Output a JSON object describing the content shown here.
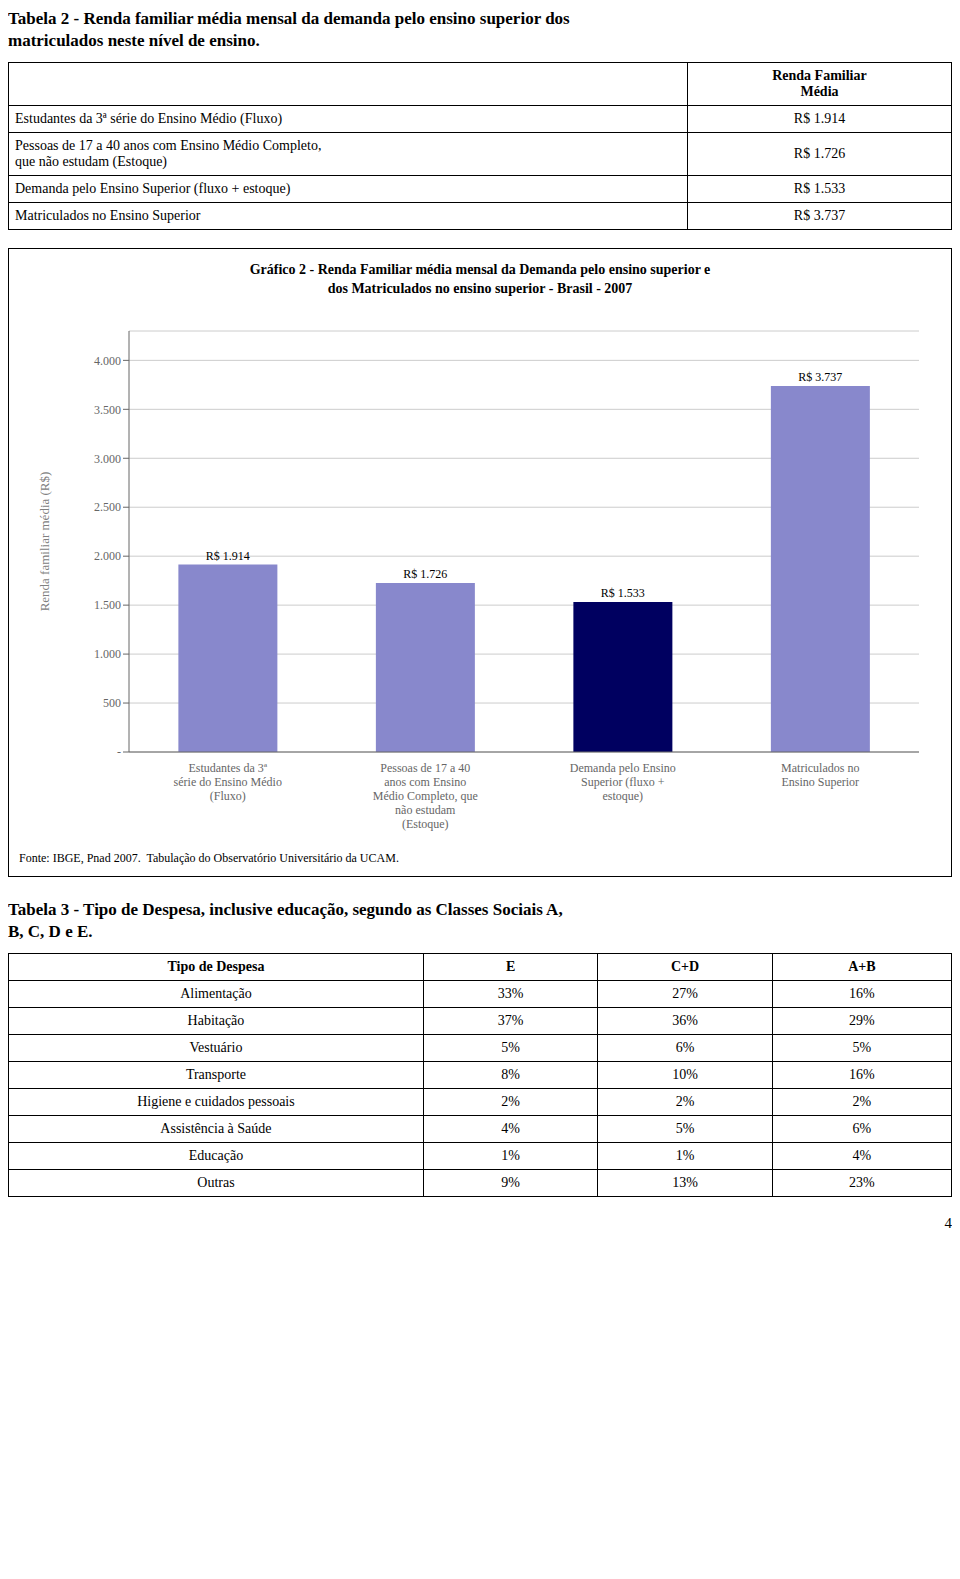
{
  "chart_data": {
    "type": "bar",
    "title": "Gráfico 2 - Renda Familiar média mensal da Demanda pelo ensino superior e\ndos Matriculados no ensino superior - Brasil - 2007",
    "categories": [
      "Estudantes da 3ª\nsérie do Ensino Médio\n(Fluxo)",
      "Pessoas de 17 a 40\nanos com Ensino\nMédio Completo, que\nnão estudam\n(Estoque)",
      "Demanda pelo Ensino\nSuperior (fluxo +\nestoque)",
      "Matriculados no\nEnsino Superior"
    ],
    "values": [
      1914,
      1726,
      1533,
      3737
    ],
    "value_labels": [
      "R$ 1.914",
      "R$ 1.726",
      "R$ 1.533",
      "R$ 3.737"
    ],
    "colors": [
      "#8888cc",
      "#8888cc",
      "#000060",
      "#8888cc"
    ],
    "ylabel": "Renda familiar média (R$)",
    "ylim": [
      0,
      4300
    ],
    "yticks": [
      {
        "value": 0,
        "label": "-"
      },
      500,
      {
        "value": 1000,
        "label": "1.000"
      },
      {
        "value": 1500,
        "label": "1.500"
      },
      {
        "value": 2000,
        "label": "2.000"
      },
      {
        "value": 2500,
        "label": "2.500"
      },
      {
        "value": 3000,
        "label": "3.000"
      },
      {
        "value": 3500,
        "label": "3.500"
      },
      {
        "value": 4000,
        "label": "4.000"
      }
    ],
    "grid": true,
    "data_labels": true,
    "annotations": [
      "Fonte: IBGE, Pnad 2007.  Tabulação do Observatório Universitário da UCAM."
    ]
  },
  "tables": [
    {
      "title": "Tabela 2 - Renda familiar média mensal da demanda pelo ensino superior dos\nmatriculados neste nível de ensino.",
      "header": [
        null,
        "Renda Familiar\nMédia"
      ],
      "rows": [
        [
          "Estudantes da 3ª série do Ensino Médio (Fluxo)",
          "R$ 1.914"
        ],
        [
          "Pessoas de 17 a 40 anos com Ensino Médio Completo,\nque não estudam (Estoque)",
          "R$ 1.726"
        ],
        [
          "Demanda pelo Ensino Superior (fluxo + estoque)",
          "R$ 1.533"
        ],
        [
          "Matriculados no Ensino Superior",
          "R$ 3.737"
        ]
      ]
    },
    {
      "title": "Tabela 3 - Tipo de Despesa, inclusive educação, segundo as Classes Sociais A,\nB, C, D e E.",
      "header": [
        "Tipo de Despesa",
        "E",
        "C+D",
        "A+B"
      ],
      "rows": [
        [
          "Alimentação",
          "33%",
          "27%",
          "16%"
        ],
        [
          "Habitação",
          "37%",
          "36%",
          "29%"
        ],
        [
          "Vestuário",
          "5%",
          "6%",
          "5%"
        ],
        [
          "Transporte",
          "8%",
          "10%",
          "16%"
        ],
        [
          "Higiene e cuidados pessoais",
          "2%",
          "2%",
          "2%"
        ],
        [
          "Assistência à Saúde",
          "4%",
          "5%",
          "6%"
        ],
        [
          "Educação",
          "1%",
          "1%",
          "4%"
        ],
        [
          "Outras",
          "9%",
          "13%",
          "23%"
        ]
      ]
    }
  ],
  "page_number": "4"
}
